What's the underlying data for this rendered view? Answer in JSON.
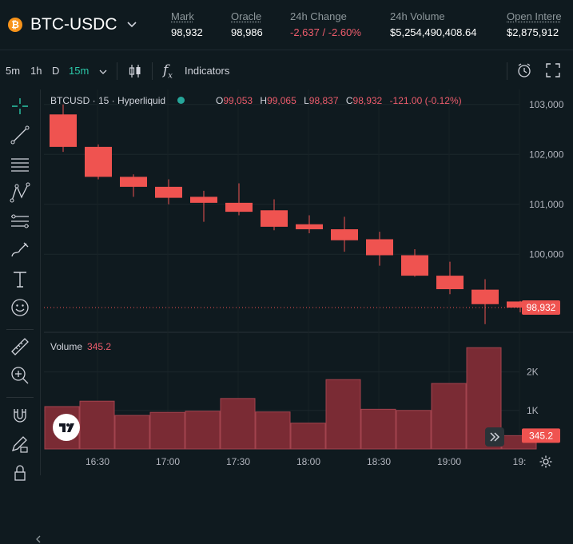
{
  "header": {
    "coin_icon": "₿",
    "pair": "BTC-USDC",
    "stats": [
      {
        "label": "Mark",
        "value": "98,932",
        "negative": false
      },
      {
        "label": "Oracle",
        "value": "98,986",
        "negative": false
      },
      {
        "label": "24h Change",
        "value": "-2,637 / -2.60%",
        "negative": true
      },
      {
        "label": "24h Volume",
        "value": "$5,254,490,408.64",
        "negative": false
      },
      {
        "label": "Open Intere",
        "value": "$2,875,912",
        "negative": false
      }
    ]
  },
  "toolbar": {
    "timeframes": [
      "5m",
      "1h",
      "D",
      "15m"
    ],
    "active_timeframe": "15m",
    "indicators_label": "Indicators"
  },
  "legend": {
    "title": "BTCUSD · 15 · Hyperliquid",
    "o_label": "O",
    "o_value": "99,053",
    "h_label": "H",
    "h_value": "99,065",
    "l_label": "L",
    "l_value": "98,837",
    "c_label": "C",
    "c_value": "98,932",
    "change": "-121.00 (-0.12%)"
  },
  "volume": {
    "label": "Volume",
    "value": "345.2"
  },
  "price_axis": {
    "ticks": [
      "103,000",
      "102,000",
      "101,000",
      "100,000"
    ],
    "current_price_label": "98,932",
    "volume_ticks": [
      "2K",
      "1K"
    ],
    "current_volume_label": "345.2"
  },
  "time_axis": {
    "ticks": [
      "16:30",
      "17:00",
      "17:30",
      "18:00",
      "18:30",
      "19:00",
      "19:"
    ]
  },
  "colors": {
    "down": "#ef5350",
    "up": "#26a69a",
    "accent": "#2bc7a8",
    "bg": "#0f1a1f"
  },
  "chart_data": {
    "type": "candlestick",
    "title": "BTCUSD · 15 · Hyperliquid",
    "interval": "15m",
    "ylim": [
      98500,
      103300
    ],
    "volume_ylim": [
      0,
      2800
    ],
    "candles": [
      {
        "open": 102800,
        "high": 103000,
        "low": 102050,
        "close": 102150,
        "volume": 1100
      },
      {
        "open": 102150,
        "high": 102200,
        "low": 101500,
        "close": 101550,
        "volume": 1240
      },
      {
        "open": 101550,
        "high": 101600,
        "low": 101150,
        "close": 101350,
        "volume": 870
      },
      {
        "open": 101350,
        "high": 101500,
        "low": 101000,
        "close": 101130,
        "volume": 950
      },
      {
        "open": 101150,
        "high": 101270,
        "low": 100650,
        "close": 101030,
        "volume": 980
      },
      {
        "open": 101030,
        "high": 101420,
        "low": 100780,
        "close": 100850,
        "volume": 1310
      },
      {
        "open": 100880,
        "high": 101100,
        "low": 100480,
        "close": 100550,
        "volume": 960
      },
      {
        "open": 100600,
        "high": 100780,
        "low": 100420,
        "close": 100500,
        "volume": 670
      },
      {
        "open": 100500,
        "high": 100750,
        "low": 100050,
        "close": 100280,
        "volume": 1800
      },
      {
        "open": 100300,
        "high": 100450,
        "low": 99770,
        "close": 99980,
        "volume": 1030
      },
      {
        "open": 99980,
        "high": 100100,
        "low": 99550,
        "close": 99570,
        "volume": 1000
      },
      {
        "open": 99570,
        "high": 99850,
        "low": 99200,
        "close": 99300,
        "volume": 1700
      },
      {
        "open": 99290,
        "high": 99500,
        "low": 98600,
        "close": 99000,
        "volume": 2630
      },
      {
        "open": 99053,
        "high": 99065,
        "low": 98837,
        "close": 98932,
        "volume": 345.2
      }
    ]
  }
}
